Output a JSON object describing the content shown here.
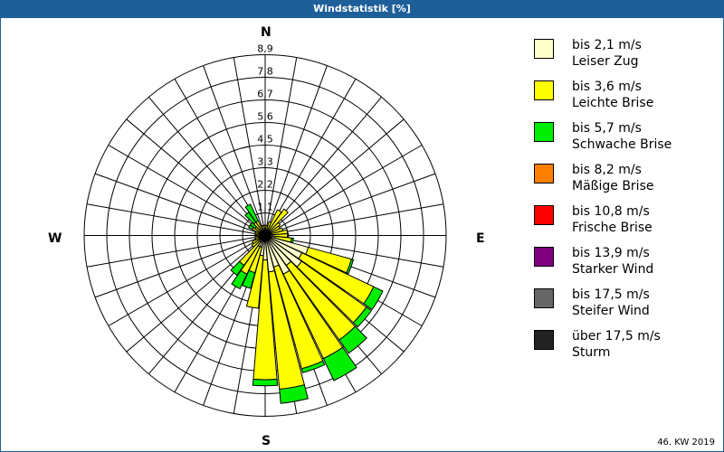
{
  "title": "Windstatistik [%]",
  "footer": "46. KW 2019",
  "compass": {
    "n": "N",
    "e": "E",
    "s": "S",
    "w": "W"
  },
  "legend": [
    {
      "line1": "bis 2,1 m/s",
      "line2": "Leiser Zug",
      "color": "#ffffcc"
    },
    {
      "line1": "bis 3,6 m/s",
      "line2": "Leichte Brise",
      "color": "#ffff00"
    },
    {
      "line1": "bis 5,7 m/s",
      "line2": "Schwache Brise",
      "color": "#00ee00"
    },
    {
      "line1": "bis 8,2 m/s",
      "line2": "Mäßige Brise",
      "color": "#ff8000"
    },
    {
      "line1": "bis 10,8 m/s",
      "line2": "Frische Brise",
      "color": "#ff0000"
    },
    {
      "line1": "bis 13,9 m/s",
      "line2": "Starker Wind",
      "color": "#800080"
    },
    {
      "line1": "bis 17,5 m/s",
      "line2": "Steifer Wind",
      "color": "#666666"
    },
    {
      "line1": "über 17,5 m/s",
      "line2": "Sturm",
      "color": "#222222"
    }
  ],
  "chart_data": {
    "type": "polar-stacked-bar",
    "title": "Windstatistik [%]",
    "rings": [
      "1,1",
      "2,2",
      "3,3",
      "4,5",
      "5,6",
      "6,7",
      "7,8",
      "8,9"
    ],
    "rmax": 8.9,
    "sector_width_deg": 10,
    "series_names": [
      "bis 2,1 m/s",
      "bis 3,6 m/s",
      "bis 5,7 m/s"
    ],
    "sectors": [
      {
        "dir": 0,
        "values": [
          0.2,
          0.3,
          0.0
        ]
      },
      {
        "dir": 10,
        "values": [
          0.2,
          0.3,
          0.0
        ]
      },
      {
        "dir": 20,
        "values": [
          0.2,
          0.5,
          0.0
        ]
      },
      {
        "dir": 30,
        "values": [
          0.3,
          1.1,
          0.0
        ]
      },
      {
        "dir": 40,
        "values": [
          0.3,
          1.3,
          0.0
        ]
      },
      {
        "dir": 50,
        "values": [
          0.3,
          0.6,
          0.0
        ]
      },
      {
        "dir": 60,
        "values": [
          0.3,
          0.5,
          0.0
        ]
      },
      {
        "dir": 70,
        "values": [
          0.3,
          0.6,
          0.0
        ]
      },
      {
        "dir": 80,
        "values": [
          0.3,
          0.8,
          0.0
        ]
      },
      {
        "dir": 90,
        "values": [
          0.4,
          0.7,
          0.05
        ]
      },
      {
        "dir": 100,
        "values": [
          0.5,
          0.8,
          0.1
        ]
      },
      {
        "dir": 110,
        "values": [
          2.2,
          2.2,
          0.1
        ]
      },
      {
        "dir": 120,
        "values": [
          2.0,
          3.9,
          0.5
        ]
      },
      {
        "dir": 130,
        "values": [
          2.2,
          3.9,
          0.3
        ]
      },
      {
        "dir": 140,
        "values": [
          1.8,
          4.5,
          0.8
        ]
      },
      {
        "dir": 150,
        "values": [
          2.1,
          4.6,
          1.2
        ]
      },
      {
        "dir": 160,
        "values": [
          1.6,
          5.2,
          0.2
        ]
      },
      {
        "dir": 170,
        "values": [
          1.8,
          5.8,
          0.7
        ]
      },
      {
        "dir": 180,
        "values": [
          1.2,
          5.9,
          0.3
        ]
      },
      {
        "dir": 190,
        "values": [
          1.0,
          2.6,
          0.0
        ]
      },
      {
        "dir": 200,
        "values": [
          0.6,
          1.3,
          0.8
        ]
      },
      {
        "dir": 210,
        "values": [
          0.6,
          1.5,
          0.8
        ]
      },
      {
        "dir": 220,
        "values": [
          0.4,
          1.4,
          0.6
        ]
      },
      {
        "dir": 230,
        "values": [
          0.3,
          0.5,
          0.0
        ]
      },
      {
        "dir": 240,
        "values": [
          0.3,
          0.4,
          0.0
        ]
      },
      {
        "dir": 250,
        "values": [
          0.2,
          0.3,
          0.0
        ]
      },
      {
        "dir": 260,
        "values": [
          0.2,
          0.3,
          0.0
        ]
      },
      {
        "dir": 270,
        "values": [
          0.2,
          0.2,
          0.0
        ]
      },
      {
        "dir": 280,
        "values": [
          0.2,
          0.3,
          0.0
        ]
      },
      {
        "dir": 290,
        "values": [
          0.2,
          0.3,
          0.0
        ]
      },
      {
        "dir": 300,
        "values": [
          0.3,
          0.4,
          0.2
        ]
      },
      {
        "dir": 310,
        "values": [
          0.2,
          0.4,
          0.3
        ]
      },
      {
        "dir": 320,
        "values": [
          0.3,
          0.5,
          0.6
        ]
      },
      {
        "dir": 330,
        "values": [
          0.3,
          0.5,
          0.9
        ]
      },
      {
        "dir": 340,
        "values": [
          0.2,
          0.3,
          0.0
        ]
      },
      {
        "dir": 350,
        "values": [
          0.2,
          0.3,
          0.0
        ]
      }
    ]
  }
}
